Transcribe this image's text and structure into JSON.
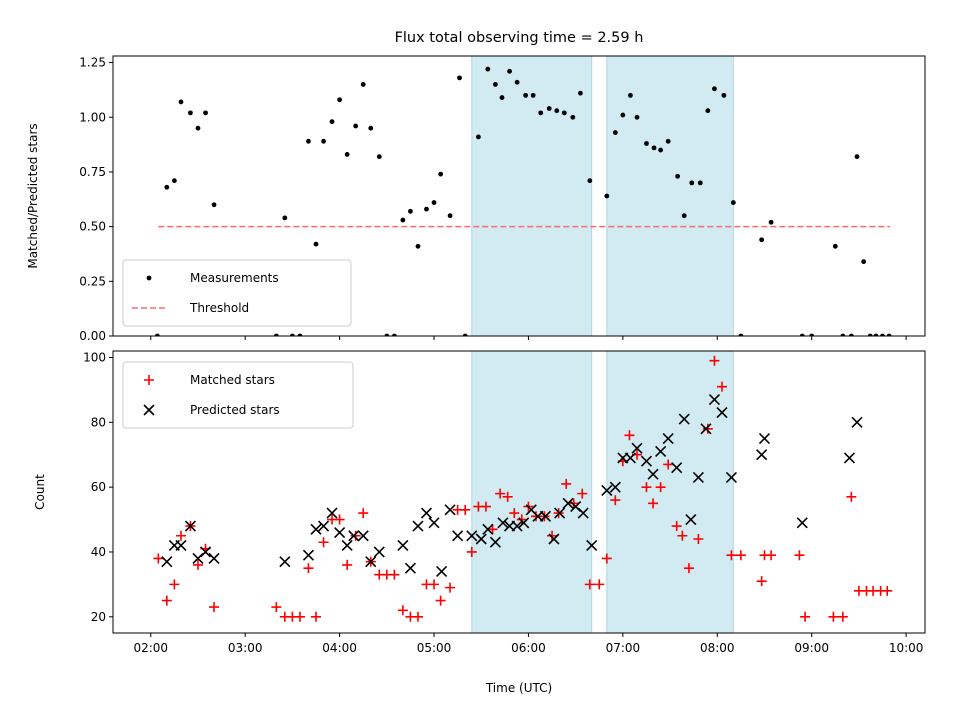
{
  "chart_data": [
    {
      "type": "scatter",
      "title": "Flux total observing time = 2.59 h",
      "xlabel": "",
      "ylabel": "Matched/Predicted stars",
      "xlim": [
        1.6,
        10.2
      ],
      "ylim": [
        0,
        1.28
      ],
      "yticks": [
        0,
        0.25,
        0.5,
        0.75,
        1.0,
        1.25
      ],
      "ytick_labels": [
        "0.00",
        "0.25",
        "0.50",
        "0.75",
        "1.00",
        "1.25"
      ],
      "shaded_intervals": [
        [
          5.4,
          6.67
        ],
        [
          6.83,
          8.17
        ]
      ],
      "shade_color": "#add8e6",
      "legend": {
        "location": "lower-left",
        "entries": [
          "Measurements",
          "Threshold"
        ]
      },
      "series": [
        {
          "name": "Measurements",
          "marker": "dot",
          "color": "#000000",
          "x": [
            2.07,
            2.17,
            2.25,
            2.32,
            2.42,
            2.5,
            2.58,
            2.67,
            3.33,
            3.42,
            3.5,
            3.58,
            3.67,
            3.75,
            3.83,
            3.92,
            4.0,
            4.08,
            4.17,
            4.25,
            4.33,
            4.42,
            4.5,
            4.58,
            4.67,
            4.75,
            4.83,
            4.92,
            5.0,
            5.07,
            5.17,
            5.27,
            5.33,
            5.47,
            5.57,
            5.65,
            5.72,
            5.8,
            5.88,
            5.97,
            6.05,
            6.13,
            6.22,
            6.3,
            6.38,
            6.47,
            6.55,
            6.65,
            6.83,
            6.92,
            7.0,
            7.08,
            7.15,
            7.25,
            7.33,
            7.4,
            7.48,
            7.58,
            7.65,
            7.73,
            7.82,
            7.9,
            7.97,
            8.07,
            8.17,
            8.25,
            8.47,
            8.57,
            8.9,
            9.0,
            9.25,
            9.33,
            9.42,
            9.48,
            9.55,
            9.62,
            9.68,
            9.75,
            9.82
          ],
          "y": [
            0,
            0.68,
            0.71,
            1.07,
            1.02,
            0.95,
            1.02,
            0.6,
            0,
            0.54,
            0,
            0,
            0.89,
            0.42,
            0.89,
            0.98,
            1.08,
            0.83,
            0.96,
            1.15,
            0.95,
            0.82,
            0,
            0,
            0.53,
            0.57,
            0.41,
            0.58,
            0.61,
            0.74,
            0.55,
            1.18,
            0,
            0.91,
            1.22,
            1.15,
            1.09,
            1.21,
            1.16,
            1.1,
            1.1,
            1.02,
            1.04,
            1.03,
            1.02,
            1.0,
            1.11,
            0.71,
            0.64,
            0.93,
            1.01,
            1.1,
            1.0,
            0.88,
            0.86,
            0.85,
            0.89,
            0.73,
            0.55,
            0.7,
            0.7,
            1.03,
            1.13,
            1.1,
            0.61,
            0,
            0.44,
            0.52,
            0,
            0,
            0.41,
            0,
            0,
            0.82,
            0.34,
            0,
            0,
            0,
            0
          ]
        },
        {
          "name": "Threshold",
          "style": "dashed-line",
          "color": "#ff6b6b",
          "x": [
            2.08,
            9.83
          ],
          "y": [
            0.5,
            0.5
          ]
        }
      ]
    },
    {
      "type": "scatter",
      "title": "",
      "xlabel": "Time (UTC)",
      "ylabel": "Count",
      "xlim": [
        1.6,
        10.2
      ],
      "ylim": [
        15,
        102
      ],
      "yticks": [
        20,
        40,
        60,
        80,
        100
      ],
      "ytick_labels": [
        "20",
        "40",
        "60",
        "80",
        "100"
      ],
      "xticks": [
        2,
        3,
        4,
        5,
        6,
        7,
        8,
        9,
        10
      ],
      "xtick_labels": [
        "02:00",
        "03:00",
        "04:00",
        "05:00",
        "06:00",
        "07:00",
        "08:00",
        "09:00",
        "10:00"
      ],
      "shaded_intervals": [
        [
          5.4,
          6.67
        ],
        [
          6.83,
          8.17
        ]
      ],
      "shade_color": "#add8e6",
      "legend": {
        "location": "top-left",
        "entries": [
          "Matched stars",
          "Predicted stars"
        ]
      },
      "series": [
        {
          "name": "Matched stars",
          "marker": "plus",
          "color": "#ff0000",
          "x": [
            2.08,
            2.17,
            2.25,
            2.32,
            2.42,
            2.5,
            2.58,
            2.67,
            3.33,
            3.42,
            3.5,
            3.58,
            3.67,
            3.75,
            3.83,
            3.92,
            4.0,
            4.08,
            4.17,
            4.25,
            4.33,
            4.42,
            4.5,
            4.58,
            4.67,
            4.75,
            4.83,
            4.92,
            5.0,
            5.07,
            5.17,
            5.25,
            5.33,
            5.4,
            5.47,
            5.55,
            5.62,
            5.7,
            5.78,
            5.85,
            5.93,
            6.0,
            6.08,
            6.17,
            6.25,
            6.32,
            6.4,
            6.48,
            6.57,
            6.65,
            6.75,
            6.83,
            6.92,
            7.0,
            7.07,
            7.15,
            7.25,
            7.32,
            7.4,
            7.48,
            7.57,
            7.63,
            7.7,
            7.8,
            7.9,
            7.97,
            8.05,
            8.15,
            8.25,
            8.47,
            8.5,
            8.57,
            8.87,
            8.93,
            9.23,
            9.33,
            9.42,
            9.5,
            9.58,
            9.65,
            9.73,
            9.8
          ],
          "y": [
            38,
            25,
            30,
            45,
            48,
            36,
            41,
            23,
            23,
            20,
            20,
            20,
            35,
            20,
            43,
            50,
            50,
            36,
            45,
            52,
            37,
            33,
            33,
            33,
            22,
            20,
            20,
            30,
            30,
            25,
            29,
            53,
            53,
            40,
            54,
            54,
            47,
            58,
            57,
            52,
            50,
            54,
            51,
            51,
            45,
            52,
            61,
            55,
            58,
            30,
            30,
            38,
            56,
            68,
            76,
            70,
            60,
            55,
            60,
            67,
            48,
            45,
            35,
            44,
            78,
            99,
            91,
            39,
            39,
            31,
            39,
            39,
            39,
            20,
            20,
            20,
            57,
            28,
            28,
            28,
            28,
            28
          ],
          "data_labels": false
        },
        {
          "name": "Predicted stars",
          "marker": "x",
          "color": "#000000",
          "x": [
            2.17,
            2.25,
            2.32,
            2.42,
            2.5,
            2.58,
            2.67,
            3.42,
            3.67,
            3.75,
            3.83,
            3.92,
            4.0,
            4.08,
            4.15,
            4.25,
            4.33,
            4.42,
            4.67,
            4.75,
            4.83,
            4.92,
            5.0,
            5.08,
            5.17,
            5.25,
            5.4,
            5.5,
            5.57,
            5.65,
            5.73,
            5.8,
            5.88,
            5.95,
            6.03,
            6.1,
            6.18,
            6.27,
            6.33,
            6.42,
            6.5,
            6.58,
            6.67,
            6.83,
            6.92,
            7.0,
            7.08,
            7.15,
            7.25,
            7.32,
            7.4,
            7.48,
            7.57,
            7.65,
            7.72,
            7.8,
            7.88,
            7.97,
            8.05,
            8.15,
            8.47,
            8.5,
            8.9,
            9.4,
            9.48
          ],
          "y": [
            37,
            42,
            42,
            48,
            38,
            40,
            38,
            37,
            39,
            47,
            48,
            52,
            46,
            42,
            45,
            45,
            37,
            40,
            42,
            35,
            48,
            52,
            49,
            34,
            53,
            45,
            45,
            44,
            47,
            43,
            49,
            48,
            48,
            49,
            53,
            51,
            51,
            44,
            52,
            55,
            54,
            52,
            42,
            59,
            60,
            69,
            69,
            72,
            68,
            64,
            71,
            75,
            66,
            81,
            50,
            63,
            78,
            87,
            83,
            63,
            70,
            75,
            49,
            69,
            80
          ]
        }
      ]
    }
  ]
}
